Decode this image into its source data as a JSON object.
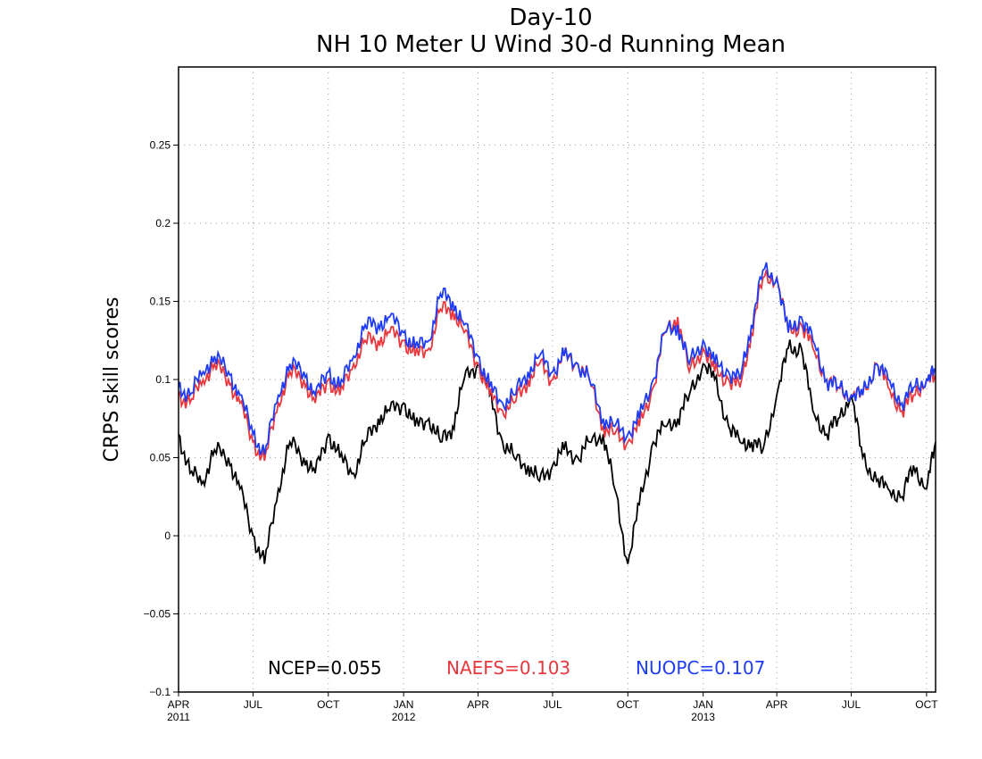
{
  "chart_data": {
    "type": "line",
    "title": "Day-10",
    "subtitle": "NH 10 Meter U Wind 30-d Running Mean",
    "xlabel": "",
    "ylabel": "CRPS skill scores",
    "ylim": [
      -0.1,
      0.3
    ],
    "yticks": [
      -0.1,
      -0.05,
      0,
      0.05,
      0.1,
      0.15,
      0.2,
      0.25
    ],
    "ytick_labels": [
      "−0.1",
      "−0.05",
      "0",
      "0.05",
      "0.1",
      "0.15",
      "0.2",
      "0.25"
    ],
    "xlim": [
      "2011-04-01",
      "2013-10-12"
    ],
    "xticks": [
      {
        "date": "2011-04-01",
        "label": "APR",
        "year": "2011"
      },
      {
        "date": "2011-07-01",
        "label": "JUL",
        "year": ""
      },
      {
        "date": "2011-10-01",
        "label": "OCT",
        "year": ""
      },
      {
        "date": "2012-01-01",
        "label": "JAN",
        "year": "2012"
      },
      {
        "date": "2012-04-01",
        "label": "APR",
        "year": ""
      },
      {
        "date": "2012-07-01",
        "label": "JUL",
        "year": ""
      },
      {
        "date": "2012-10-01",
        "label": "OCT",
        "year": ""
      },
      {
        "date": "2013-01-01",
        "label": "JAN",
        "year": "2013"
      },
      {
        "date": "2013-04-01",
        "label": "APR",
        "year": ""
      },
      {
        "date": "2013-07-01",
        "label": "JUL",
        "year": ""
      },
      {
        "date": "2013-10-01",
        "label": "OCT",
        "year": ""
      }
    ],
    "grid": true,
    "legend_position": "bottom",
    "x": [
      "2011-04-01",
      "2011-04-15",
      "2011-05-01",
      "2011-05-15",
      "2011-06-01",
      "2011-06-15",
      "2011-07-01",
      "2011-07-15",
      "2011-08-01",
      "2011-08-15",
      "2011-09-01",
      "2011-09-15",
      "2011-10-01",
      "2011-10-15",
      "2011-11-01",
      "2011-11-15",
      "2011-12-01",
      "2011-12-15",
      "2012-01-01",
      "2012-01-15",
      "2012-02-01",
      "2012-02-15",
      "2012-03-01",
      "2012-03-15",
      "2012-04-01",
      "2012-04-15",
      "2012-05-01",
      "2012-05-15",
      "2012-06-01",
      "2012-06-15",
      "2012-07-01",
      "2012-07-15",
      "2012-08-01",
      "2012-08-15",
      "2012-09-01",
      "2012-09-15",
      "2012-10-01",
      "2012-10-15",
      "2012-11-01",
      "2012-11-15",
      "2012-12-01",
      "2012-12-15",
      "2013-01-01",
      "2013-01-15",
      "2013-02-01",
      "2013-02-15",
      "2013-03-01",
      "2013-03-15",
      "2013-04-01",
      "2013-04-15",
      "2013-05-01",
      "2013-05-15",
      "2013-06-01",
      "2013-06-15",
      "2013-07-01",
      "2013-07-15",
      "2013-08-01",
      "2013-08-15",
      "2013-09-01",
      "2013-09-15",
      "2013-10-01",
      "2013-10-12"
    ],
    "series": [
      {
        "name": "NCEP",
        "legend_label": "NCEP=0.055",
        "color": "#000000",
        "values": [
          0.065,
          0.04,
          0.035,
          0.055,
          0.05,
          0.03,
          0.0,
          -0.018,
          0.03,
          0.06,
          0.05,
          0.04,
          0.065,
          0.05,
          0.04,
          0.06,
          0.075,
          0.08,
          0.085,
          0.07,
          0.075,
          0.06,
          0.07,
          0.1,
          0.11,
          0.09,
          0.06,
          0.05,
          0.045,
          0.035,
          0.045,
          0.055,
          0.05,
          0.06,
          0.065,
          0.03,
          -0.018,
          0.02,
          0.06,
          0.07,
          0.075,
          0.09,
          0.11,
          0.1,
          0.07,
          0.06,
          0.06,
          0.055,
          0.09,
          0.12,
          0.12,
          0.08,
          0.065,
          0.075,
          0.09,
          0.05,
          0.035,
          0.03,
          0.025,
          0.045,
          0.03,
          0.06
        ]
      },
      {
        "name": "NAEFS",
        "legend_label": "NAEFS=0.103",
        "color": "#e8383d",
        "values": [
          0.09,
          0.085,
          0.1,
          0.11,
          0.1,
          0.085,
          0.06,
          0.048,
          0.085,
          0.105,
          0.1,
          0.085,
          0.1,
          0.09,
          0.11,
          0.125,
          0.125,
          0.13,
          0.125,
          0.115,
          0.12,
          0.145,
          0.145,
          0.13,
          0.11,
          0.09,
          0.08,
          0.085,
          0.1,
          0.11,
          0.1,
          0.115,
          0.11,
          0.1,
          0.07,
          0.065,
          0.06,
          0.07,
          0.095,
          0.13,
          0.14,
          0.105,
          0.12,
          0.105,
          0.1,
          0.095,
          0.13,
          0.165,
          0.165,
          0.13,
          0.135,
          0.12,
          0.1,
          0.095,
          0.09,
          0.09,
          0.11,
          0.095,
          0.08,
          0.09,
          0.1,
          0.1
        ]
      },
      {
        "name": "NUOPC",
        "legend_label": "NUOPC=0.107",
        "color": "#1e3cf5",
        "values": [
          0.095,
          0.09,
          0.105,
          0.115,
          0.105,
          0.09,
          0.065,
          0.052,
          0.09,
          0.11,
          0.105,
          0.09,
          0.105,
          0.095,
          0.115,
          0.135,
          0.135,
          0.14,
          0.13,
          0.12,
          0.125,
          0.155,
          0.15,
          0.135,
          0.115,
          0.095,
          0.085,
          0.09,
          0.105,
          0.115,
          0.105,
          0.115,
          0.11,
          0.1,
          0.075,
          0.07,
          0.065,
          0.075,
          0.1,
          0.13,
          0.135,
          0.11,
          0.125,
          0.11,
          0.105,
          0.1,
          0.135,
          0.17,
          0.165,
          0.13,
          0.14,
          0.125,
          0.1,
          0.095,
          0.09,
          0.09,
          0.11,
          0.1,
          0.085,
          0.095,
          0.1,
          0.105
        ]
      }
    ]
  }
}
